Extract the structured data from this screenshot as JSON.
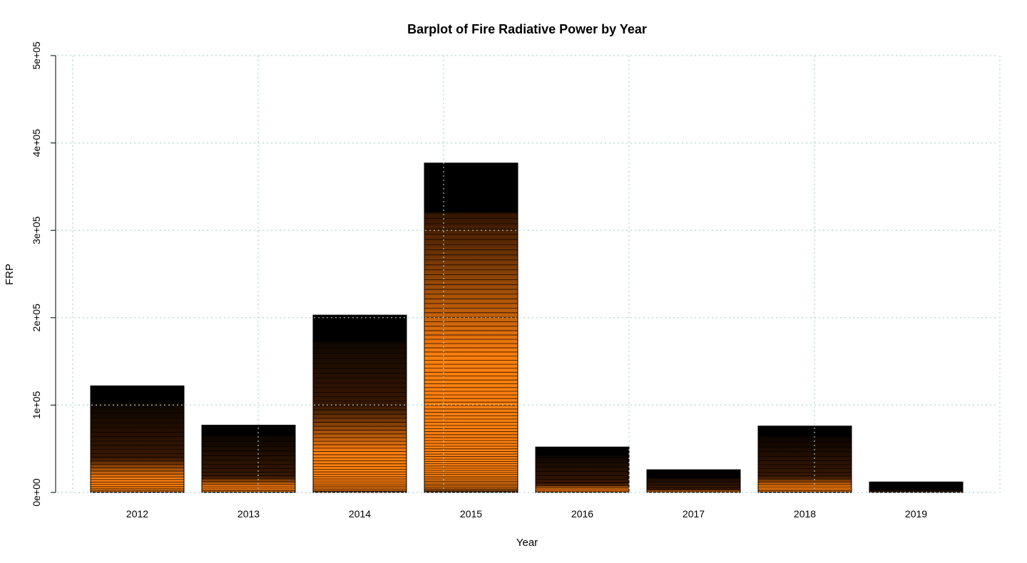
{
  "chart_data": {
    "type": "bar",
    "title": "Barplot of Fire Radiative Power by Year",
    "xlabel": "Year",
    "ylabel": "FRP",
    "categories": [
      "2012",
      "2013",
      "2014",
      "2015",
      "2016",
      "2017",
      "2018",
      "2019"
    ],
    "values": [
      122000,
      77000,
      203000,
      377000,
      52000,
      26000,
      76000,
      12000
    ],
    "ylim": [
      0,
      500000
    ],
    "yticks": [
      0,
      100000,
      200000,
      300000,
      400000,
      500000
    ],
    "ytick_labels": [
      "0e+00",
      "1e+05",
      "2e+05",
      "3e+05",
      "4e+05",
      "5e+05"
    ],
    "grid": true,
    "colors": {
      "bar_fill": "#ff7f0e",
      "bar_lines": "#000000",
      "grid": "#b8d8d0"
    }
  }
}
